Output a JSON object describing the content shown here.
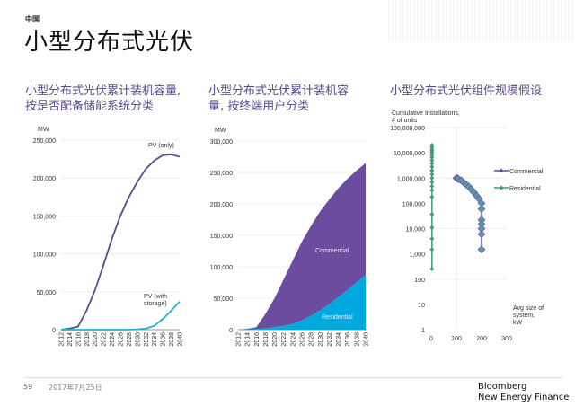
{
  "header": {
    "region": "中国",
    "title": "小型分布式光伏"
  },
  "subtitles": [
    "小型分布式光伏累计装机容量, 按是否配备储能系统分类",
    "小型分布式光伏累计装机容量, 按终端用户分类",
    "小型分布式光伏组件规模假设"
  ],
  "footer": {
    "page": "59",
    "date": "2017年7月25日",
    "brand_line1": "Bloomberg",
    "brand_line2": "New Energy Finance"
  },
  "chart_data": [
    {
      "type": "line",
      "ylabel": "MW",
      "ylim": [
        0,
        250000
      ],
      "yticks": [
        0,
        50000,
        100000,
        150000,
        200000,
        250000
      ],
      "ytick_labels": [
        "0",
        "50,000",
        "100,000",
        "150,000",
        "200,000",
        "250,000"
      ],
      "grid": true,
      "categories": [
        "2012",
        "2014",
        "2016",
        "2018",
        "2020",
        "2022",
        "2024",
        "2026",
        "2028",
        "2030",
        "2032",
        "2034",
        "2036",
        "2038",
        "2040"
      ],
      "series": [
        {
          "name": "PV (only)",
          "color": "#5b4a8e",
          "values": [
            0,
            1500,
            4000,
            25000,
            52000,
            85000,
            120000,
            150000,
            175000,
            195000,
            212000,
            223000,
            230000,
            231000,
            228000
          ]
        },
        {
          "name": "PV (with storage)",
          "color": "#2ab3c9",
          "values": [
            0,
            0,
            0,
            0,
            0,
            0,
            0,
            0,
            0,
            500,
            1500,
            5000,
            14000,
            25000,
            37000
          ]
        }
      ]
    },
    {
      "type": "area",
      "stacked": true,
      "ylabel": "MW",
      "ylim": [
        0,
        300000
      ],
      "yticks": [
        0,
        50000,
        100000,
        150000,
        200000,
        250000,
        300000
      ],
      "ytick_labels": [
        "0",
        "50,000",
        "100,000",
        "150,000",
        "200,000",
        "250,000",
        "300,000"
      ],
      "grid": true,
      "categories": [
        "2012",
        "2014",
        "2016",
        "2018",
        "2020",
        "2022",
        "2024",
        "2026",
        "2028",
        "2030",
        "2032",
        "2034",
        "2036",
        "2038",
        "2040"
      ],
      "series": [
        {
          "name": "Residential",
          "color": "#00a8e0",
          "values": [
            0,
            500,
            1000,
            2000,
            4000,
            6000,
            9000,
            15000,
            22000,
            31000,
            40000,
            52000,
            63000,
            75000,
            87000
          ]
        },
        {
          "name": "Commercial",
          "color": "#6b4c9e",
          "values": [
            0,
            1000,
            3000,
            23000,
            46000,
            74000,
            101000,
            125000,
            143000,
            157000,
            167000,
            173000,
            177000,
            178000,
            178000
          ]
        }
      ]
    },
    {
      "type": "scatter",
      "ylabel": "Cumulative Installations, # of units",
      "xlabel": "Avg size of system, kW",
      "yscale": "log",
      "ylim": [
        1,
        100000000
      ],
      "xlim": [
        0,
        300
      ],
      "xticks": [
        0,
        100,
        200,
        300
      ],
      "ytick_labels": [
        "1",
        "10",
        "100",
        "1,000",
        "10,000",
        "100,000",
        "1,000,000",
        "10,000,000",
        "100,000,000"
      ],
      "legend": "right",
      "grid": true,
      "series": [
        {
          "name": "Commercial",
          "color": "#6b4c9e",
          "x": [
            100,
            105,
            110,
            120,
            130,
            140,
            150,
            160,
            170,
            180,
            190,
            200,
            200,
            200,
            200,
            200,
            200,
            200
          ],
          "y": [
            1000000,
            950000,
            900000,
            800000,
            650000,
            550000,
            450000,
            350000,
            270000,
            200000,
            150000,
            100000,
            60000,
            22000,
            15000,
            10000,
            6000,
            1500
          ]
        },
        {
          "name": "Residential",
          "color": "#3a9a7a",
          "x": [
            3,
            3,
            3,
            3,
            3,
            3,
            3,
            3,
            3,
            3,
            3,
            3,
            3,
            3,
            3,
            3,
            3,
            3,
            3,
            3,
            3,
            3
          ],
          "y": [
            250,
            1500,
            4000,
            11000,
            37000,
            180000,
            330000,
            480000,
            700000,
            1000000,
            1400000,
            2000000,
            2800000,
            3800000,
            5000000,
            6500000,
            8000000,
            10000000,
            12000000,
            14000000,
            17000000,
            20000000
          ]
        }
      ]
    }
  ]
}
